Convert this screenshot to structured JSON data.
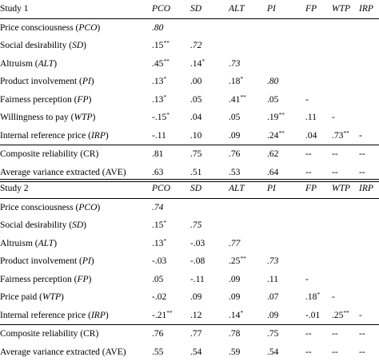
{
  "columns": [
    "PCO",
    "SD",
    "ALT",
    "PI",
    "FP",
    "WTP",
    "IRP"
  ],
  "studies": [
    {
      "title": "Study 1",
      "rows": [
        {
          "label": "Price consciousness (",
          "abbr": "PCO",
          "cells": [
            {
              "v": ".80",
              "d": true
            }
          ]
        },
        {
          "label": "Social desirability (",
          "abbr": "SD",
          "cells": [
            {
              "v": ".15",
              "s": "**"
            },
            {
              "v": ".72",
              "d": true
            }
          ]
        },
        {
          "label": "Altruism (",
          "abbr": "ALT",
          "cells": [
            {
              "v": ".45",
              "s": "**"
            },
            {
              "v": ".14",
              "s": "*"
            },
            {
              "v": ".73",
              "d": true
            }
          ]
        },
        {
          "label": "Product involvement (",
          "abbr": "PI",
          "cells": [
            {
              "v": ".13",
              "s": "*"
            },
            {
              "v": ".00"
            },
            {
              "v": ".18",
              "s": "*"
            },
            {
              "v": ".80",
              "d": true
            }
          ]
        },
        {
          "label": "Fairness perception (",
          "abbr": "FP",
          "cells": [
            {
              "v": ".13",
              "s": "*"
            },
            {
              "v": ".05"
            },
            {
              "v": ".41",
              "s": "**"
            },
            {
              "v": ".05"
            },
            {
              "v": "-"
            }
          ]
        },
        {
          "label": "Willingness to pay (",
          "abbr": "WTP",
          "cells": [
            {
              "v": "-.15",
              "s": "*"
            },
            {
              "v": ".04"
            },
            {
              "v": ".05"
            },
            {
              "v": ".19",
              "s": "**"
            },
            {
              "v": ".11"
            },
            {
              "v": "-"
            }
          ]
        },
        {
          "label": "Internal reference price (",
          "abbr": "IRP",
          "cells": [
            {
              "v": "-.11"
            },
            {
              "v": ".10"
            },
            {
              "v": ".09"
            },
            {
              "v": ".24",
              "s": "**"
            },
            {
              "v": ".04"
            },
            {
              "v": ".73",
              "s": "**"
            },
            {
              "v": "-"
            }
          ]
        }
      ],
      "summary": [
        {
          "label": "Composite reliability (CR)",
          "cells": [
            ".81",
            ".75",
            ".76",
            ".62",
            "--",
            "--",
            "--"
          ]
        },
        {
          "label": "Average variance extracted (AVE)",
          "cells": [
            ".63",
            ".51",
            ".53",
            ".64",
            "--",
            "--",
            "--"
          ]
        }
      ]
    },
    {
      "title": "Study 2",
      "rows": [
        {
          "label": "Price consciousness (",
          "abbr": "PCO",
          "cells": [
            {
              "v": ".74",
              "d": true
            }
          ]
        },
        {
          "label": "Social desirability (",
          "abbr": "SD",
          "cells": [
            {
              "v": ".15",
              "s": "*"
            },
            {
              "v": ".75",
              "d": true
            }
          ]
        },
        {
          "label": "Altruism (",
          "abbr": "ALT",
          "cells": [
            {
              "v": ".13",
              "s": "*"
            },
            {
              "v": "-.03"
            },
            {
              "v": ".77",
              "d": true
            }
          ]
        },
        {
          "label": "Product involvement (",
          "abbr": "PI",
          "cells": [
            {
              "v": "-.03"
            },
            {
              "v": "-.08"
            },
            {
              "v": ".25",
              "s": "**"
            },
            {
              "v": ".73",
              "d": true
            }
          ]
        },
        {
          "label": "Fairness perception (",
          "abbr": "FP",
          "cells": [
            {
              "v": ".05"
            },
            {
              "v": "-.11"
            },
            {
              "v": ".09"
            },
            {
              "v": ".11"
            },
            {
              "v": "-"
            }
          ]
        },
        {
          "label": "Price paid (",
          "abbr": "WTP",
          "cells": [
            {
              "v": "-.02"
            },
            {
              "v": ".09"
            },
            {
              "v": ".09"
            },
            {
              "v": ".07"
            },
            {
              "v": ".18",
              "s": "*"
            },
            {
              "v": "-"
            }
          ]
        },
        {
          "label": "Internal reference price (",
          "abbr": "IRP",
          "cells": [
            {
              "v": "-.21",
              "s": "**"
            },
            {
              "v": ".12"
            },
            {
              "v": ".14",
              "s": "*"
            },
            {
              "v": ".09"
            },
            {
              "v": "-.01"
            },
            {
              "v": ".25",
              "s": "**"
            },
            {
              "v": "-"
            }
          ]
        }
      ],
      "summary": [
        {
          "label": "Composite reliability (CR)",
          "cells": [
            ".76",
            ".77",
            ".78",
            ".75",
            "--",
            "--",
            "--"
          ]
        },
        {
          "label": "Average variance extracted (AVE)",
          "cells": [
            ".55",
            ".54",
            ".59",
            ".54",
            "--",
            "--",
            "--"
          ]
        }
      ]
    }
  ]
}
